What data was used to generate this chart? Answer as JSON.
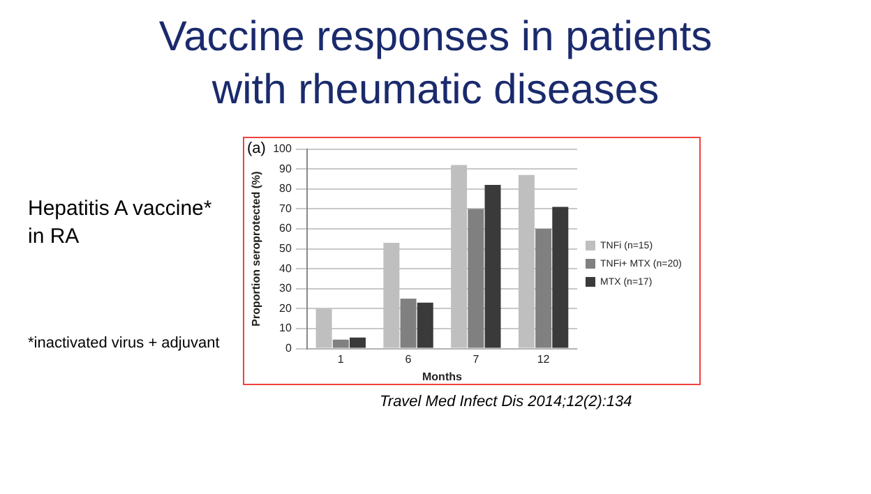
{
  "chart_data": {
    "type": "bar",
    "title": "Vaccine responses in patients with rheumatic diseases",
    "subtitle": "Hepatitis A vaccine* in RA",
    "xlabel": "Months",
    "ylabel": "Proportion seroprotected (%)",
    "annotations": [
      "(a)",
      "*inactivated virus + adjuvant",
      "Travel Med Infect Dis 2014;12(2):134"
    ],
    "categories": [
      "1",
      "6",
      "7",
      "12"
    ],
    "series": [
      {
        "name": "TNFi (n=15)",
        "color": "#bfbfbf",
        "values": [
          20,
          53,
          92,
          87
        ]
      },
      {
        "name": "TNFi+ MTX (n=20)",
        "color": "#808080",
        "values": [
          4.5,
          25,
          70,
          60
        ]
      },
      {
        "name": "MTX (n=17)",
        "color": "#3a3a3a",
        "values": [
          5.5,
          23,
          82,
          71
        ]
      }
    ],
    "ylim": [
      0,
      100
    ],
    "yticks": [
      0,
      10,
      20,
      30,
      40,
      50,
      60,
      70,
      80,
      90,
      100
    ],
    "grid": "y",
    "legend": "right"
  }
}
